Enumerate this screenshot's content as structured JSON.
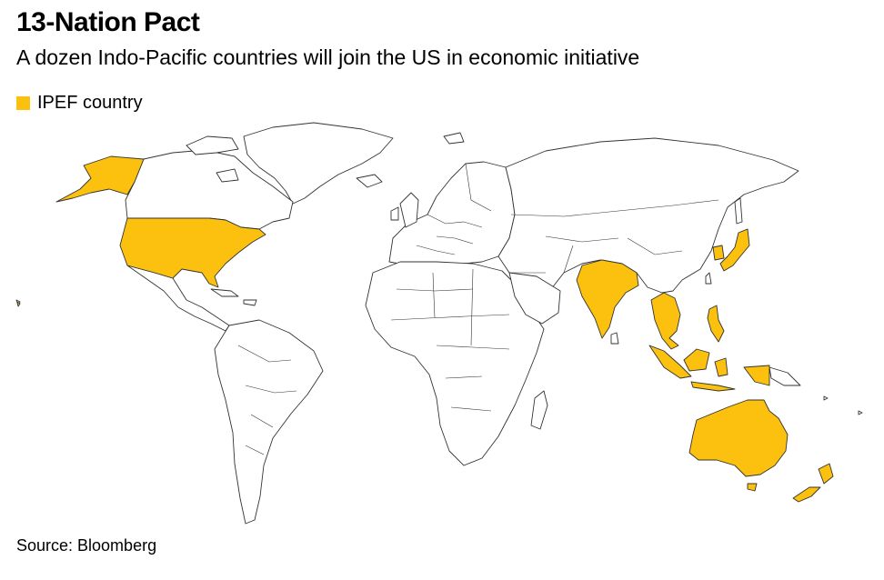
{
  "header": {
    "title": "13-Nation Pact",
    "subtitle": "A dozen Indo-Pacific countries will join the US in economic initiative"
  },
  "legend": {
    "label": "IPEF country",
    "color": "#FCC00F"
  },
  "map": {
    "highlighted_countries": [
      "United States",
      "India",
      "Japan",
      "South Korea",
      "Australia",
      "New Zealand",
      "Indonesia",
      "Malaysia",
      "Philippines",
      "Singapore",
      "Thailand",
      "Vietnam",
      "Brunei"
    ],
    "base_fill": "#FFFFFF",
    "border_color": "#333333"
  },
  "footer": {
    "source": "Source: Bloomberg"
  }
}
